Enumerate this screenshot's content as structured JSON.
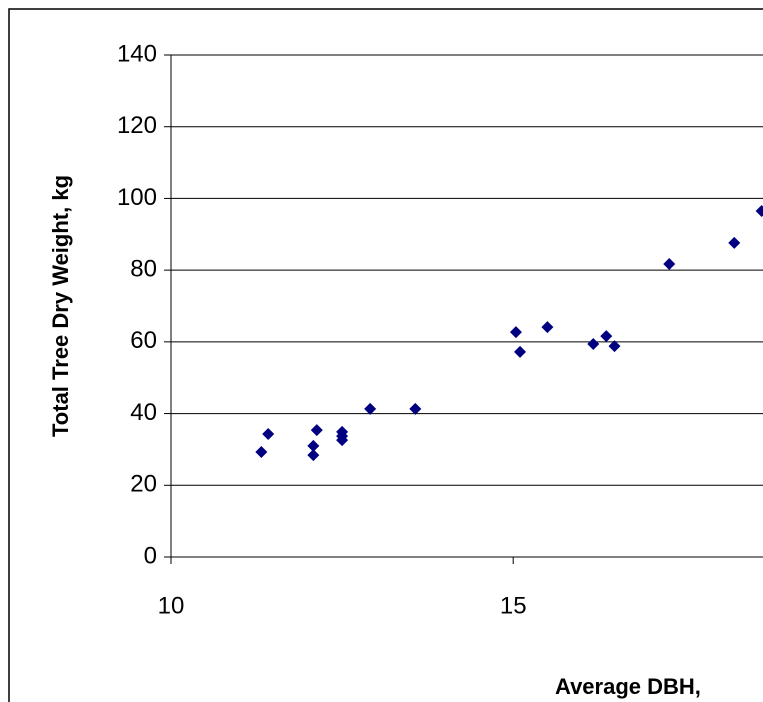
{
  "chart_data": {
    "type": "scatter",
    "x_label": "Average DBH,",
    "y_label": "Total Tree Dry Weight, kg",
    "x": [
      11.32,
      11.42,
      12.08,
      12.08,
      12.13,
      12.5,
      12.5,
      12.5,
      12.91,
      13.57,
      15.04,
      15.1,
      15.5,
      16.17,
      16.36,
      16.48,
      17.28,
      18.23,
      18.63
    ],
    "values": [
      29.3,
      34.3,
      28.4,
      31.0,
      35.4,
      34.9,
      33.7,
      32.6,
      41.3,
      41.3,
      62.7,
      57.2,
      64.1,
      59.4,
      61.6,
      58.8,
      81.7,
      87.6,
      96.5
    ],
    "color": "#000080",
    "xlim": [
      10,
      18.65
    ],
    "xticks": [
      10,
      15
    ],
    "ylim": [
      0,
      140
    ],
    "yticks": [
      0,
      20,
      40,
      60,
      80,
      100,
      120,
      140
    ],
    "grid": true
  }
}
